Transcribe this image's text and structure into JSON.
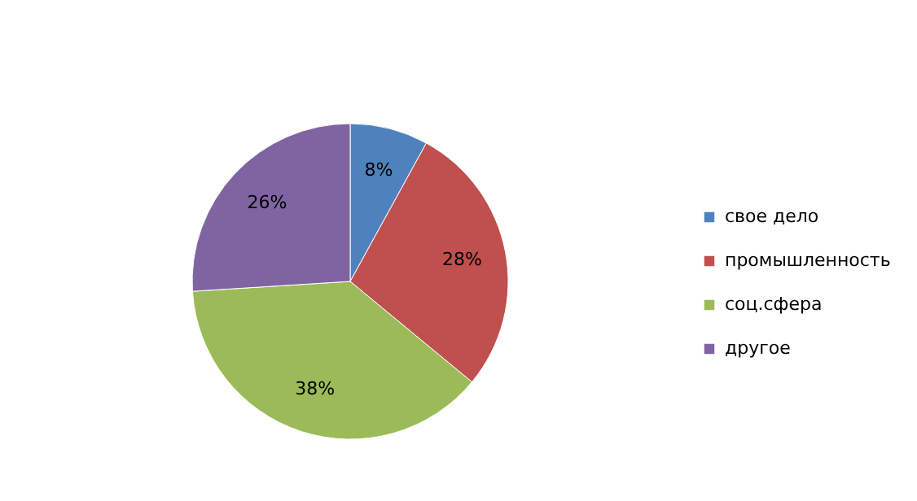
{
  "chart_data": {
    "type": "pie",
    "categories": [
      "свое дело",
      "промышленность",
      "соц.сфера",
      "другое"
    ],
    "values": [
      8,
      28,
      38,
      26
    ],
    "colors": [
      "#4f81bd",
      "#c0504d",
      "#9bbb59",
      "#8064a2"
    ],
    "value_labels": [
      "8%",
      "28%",
      "38%",
      "26%"
    ],
    "legend": "right"
  }
}
